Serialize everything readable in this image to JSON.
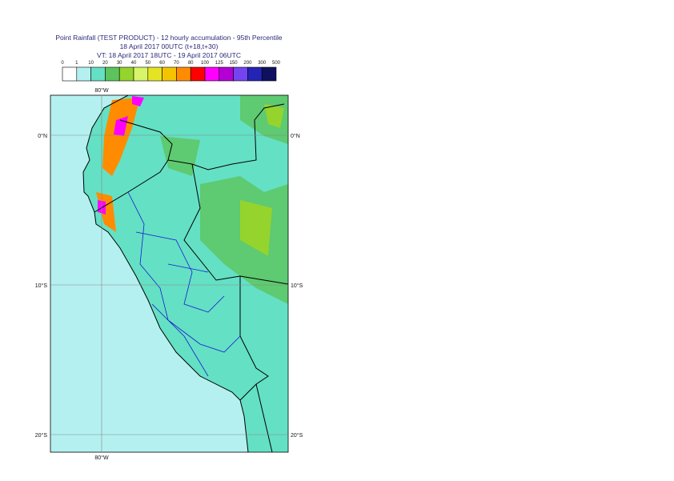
{
  "header": {
    "lines": [
      "Point Rainfall (TEST PRODUCT) - 12 hourly accumulation - 95th Percentile",
      "18 April 2017 00UTC (t+18,t+30)",
      "VT: 18 April 2017 18UTC - 19 April 2017 06UTC"
    ]
  },
  "legend": {
    "labels": [
      0,
      1,
      10,
      20,
      30,
      40,
      50,
      60,
      70,
      80,
      100,
      125,
      150,
      200,
      300,
      500
    ],
    "colors": [
      "#ffffff",
      "#b4f0f0",
      "#64e0c4",
      "#5cc45c",
      "#94d42c",
      "#d8f468",
      "#e4e424",
      "#f4c400",
      "#ff8c00",
      "#ff0000",
      "#ff00ff",
      "#b400d4",
      "#7444f0",
      "#2424b4",
      "#101060"
    ]
  },
  "map": {
    "lon_labels": [
      "80°W"
    ],
    "lat_labels": [
      "0°N",
      "10°S",
      "20°S"
    ]
  }
}
